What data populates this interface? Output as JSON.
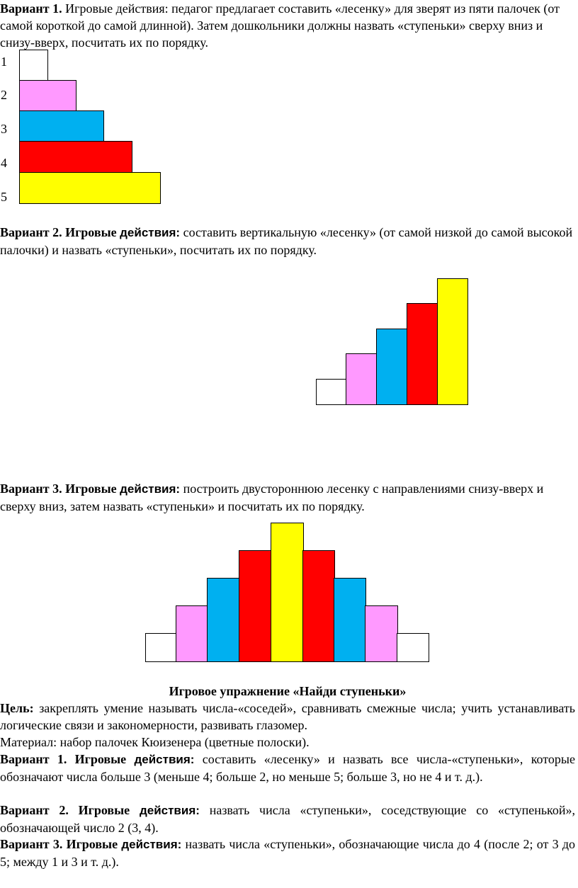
{
  "variant1": {
    "label": "Вариант 1.",
    "text": " Игровые действия: педагог предлагает составить «лесенку» для зверят из пяти палочек (от самой короткой до самой длинной). Затем дошкольники должны назвать «ступеньки» сверху вниз и снизу-вверх, посчитать их по порядку.",
    "numbers": [
      "1",
      "2",
      "3",
      "4",
      "5"
    ]
  },
  "variant2": {
    "label": "Вариант 2.",
    "label2": "Игровые",
    "label3": "действия:",
    "text": " составить вертикальную «лесенку» (от самой низкой до самой высокой палочки) и назвать «ступеньки», посчитать их по порядку."
  },
  "variant3": {
    "label": "Вариант 3.",
    "label2": "Игровые",
    "label3": "действия:",
    "text": " построить двустороннюю лесенку с направлениями снизу-вверх и сверху вниз, затем назвать «ступеньки» и посчитать их по порядку."
  },
  "exercise": {
    "title": "Игровое упражнение «Найди ступеньки»",
    "goal_label": "Цель:",
    "goal_text": " закреплять умение называть числа-«соседей», сравнивать смежные числа; учить устанавливать логические связи и закономерности, развивать глазомер.",
    "material": "Материал: набор палочек Кюизенера (цветные полоски).",
    "v1_label": "Вариант 1.",
    "v1_label2": "Игровые",
    "v1_label3": "действия:",
    "v1_text": " составить «лесенку» и назвать все числа-«ступеньки», которые обозначают числа больше 3 (меньше 4; больше 2, но меньше 5; больше 3, но не 4 и т. д.).",
    "v2_label": "Вариант 2.",
    "v2_label2": "Игровые",
    "v2_label3": "действия:",
    "v2_text": " назвать числа «ступеньки», соседствующие со «ступенькой», обозначающей число 2 (3, 4).",
    "v3_label": "Вариант 3.",
    "v3_label2": "Игровые",
    "v3_label3": "действия:",
    "v3_text": " назвать числа «ступеньки», обозначающие числа до 4 (после 2; от 3 до 5; между 1 и 3 и т. д.)."
  },
  "colors": {
    "white": "#ffffff",
    "pink": "#ff99ff",
    "blue": "#00b0f0",
    "red": "#ff0000",
    "yellow": "#ffff00"
  }
}
